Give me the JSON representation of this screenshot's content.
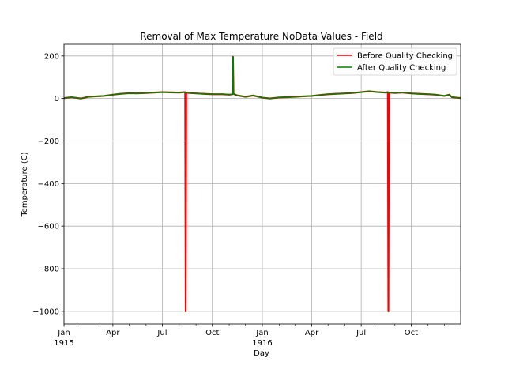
{
  "chart_data": {
    "type": "line",
    "title": "Removal of Max Temperature NoData Values - Field",
    "xlabel": "Day",
    "ylabel": "Temperature (C)",
    "ylim": [
      -1060,
      255
    ],
    "xlim": [
      "1915-01-01",
      "1916-12-31"
    ],
    "grid": true,
    "legend_position": "top-right",
    "y_ticks": [
      {
        "value": 200,
        "label": "200"
      },
      {
        "value": 0,
        "label": "0"
      },
      {
        "value": -200,
        "label": "−200"
      },
      {
        "value": -400,
        "label": "−400"
      },
      {
        "value": -600,
        "label": "−600"
      },
      {
        "value": -800,
        "label": "−800"
      },
      {
        "value": -1000,
        "label": "−1000"
      }
    ],
    "x_ticks": [
      {
        "date": "1915-01-01",
        "label": "Jan",
        "sublabel": "1915"
      },
      {
        "date": "1915-04-01",
        "label": "Apr",
        "sublabel": ""
      },
      {
        "date": "1915-07-01",
        "label": "Jul",
        "sublabel": ""
      },
      {
        "date": "1915-10-01",
        "label": "Oct",
        "sublabel": ""
      },
      {
        "date": "1916-01-01",
        "label": "Jan",
        "sublabel": "1916"
      },
      {
        "date": "1916-04-01",
        "label": "Apr",
        "sublabel": ""
      },
      {
        "date": "1916-07-01",
        "label": "Jul",
        "sublabel": ""
      },
      {
        "date": "1916-10-01",
        "label": "Oct",
        "sublabel": ""
      }
    ],
    "series": [
      {
        "name": "Before Quality Checking",
        "color": "#ff0000",
        "points": [
          [
            "1915-01-01",
            2
          ],
          [
            "1915-01-15",
            6
          ],
          [
            "1915-02-01",
            0
          ],
          [
            "1915-02-15",
            8
          ],
          [
            "1915-03-01",
            10
          ],
          [
            "1915-03-15",
            12
          ],
          [
            "1915-04-01",
            18
          ],
          [
            "1915-04-15",
            22
          ],
          [
            "1915-05-01",
            25
          ],
          [
            "1915-05-15",
            24
          ],
          [
            "1915-06-01",
            26
          ],
          [
            "1915-06-15",
            28
          ],
          [
            "1915-07-01",
            30
          ],
          [
            "1915-07-15",
            29
          ],
          [
            "1915-08-01",
            28
          ],
          [
            "1915-08-12",
            30
          ],
          [
            "1915-08-13",
            -1000
          ],
          [
            "1915-08-14",
            28
          ],
          [
            "1915-08-20",
            26
          ],
          [
            "1915-09-01",
            24
          ],
          [
            "1915-09-15",
            22
          ],
          [
            "1915-10-01",
            20
          ],
          [
            "1915-10-20",
            20
          ],
          [
            "1915-11-01",
            18
          ],
          [
            "1915-11-07",
            20
          ],
          [
            "1915-11-08",
            196
          ],
          [
            "1915-11-09",
            22
          ],
          [
            "1915-11-15",
            15
          ],
          [
            "1915-12-01",
            8
          ],
          [
            "1915-12-15",
            14
          ],
          [
            "1916-01-01",
            4
          ],
          [
            "1916-01-15",
            0
          ],
          [
            "1916-02-01",
            5
          ],
          [
            "1916-02-15",
            6
          ],
          [
            "1916-03-01",
            8
          ],
          [
            "1916-03-15",
            10
          ],
          [
            "1916-04-01",
            12
          ],
          [
            "1916-04-15",
            16
          ],
          [
            "1916-05-01",
            20
          ],
          [
            "1916-05-15",
            22
          ],
          [
            "1916-06-01",
            24
          ],
          [
            "1916-06-15",
            26
          ],
          [
            "1916-07-01",
            30
          ],
          [
            "1916-07-15",
            34
          ],
          [
            "1916-08-01",
            30
          ],
          [
            "1916-08-15",
            28
          ],
          [
            "1916-08-19",
            30
          ],
          [
            "1916-08-20",
            -1000
          ],
          [
            "1916-08-21",
            28
          ],
          [
            "1916-09-01",
            26
          ],
          [
            "1916-09-15",
            28
          ],
          [
            "1916-10-01",
            24
          ],
          [
            "1916-10-15",
            22
          ],
          [
            "1916-11-01",
            20
          ],
          [
            "1916-11-15",
            18
          ],
          [
            "1916-12-01",
            12
          ],
          [
            "1916-12-10",
            18
          ],
          [
            "1916-12-15",
            6
          ],
          [
            "1916-12-31",
            2
          ]
        ]
      },
      {
        "name": "After Quality Checking",
        "color": "#008000",
        "points": [
          [
            "1915-01-01",
            2
          ],
          [
            "1915-01-15",
            6
          ],
          [
            "1915-02-01",
            0
          ],
          [
            "1915-02-15",
            8
          ],
          [
            "1915-03-01",
            10
          ],
          [
            "1915-03-15",
            12
          ],
          [
            "1915-04-01",
            18
          ],
          [
            "1915-04-15",
            22
          ],
          [
            "1915-05-01",
            25
          ],
          [
            "1915-05-15",
            24
          ],
          [
            "1915-06-01",
            26
          ],
          [
            "1915-06-15",
            28
          ],
          [
            "1915-07-01",
            30
          ],
          [
            "1915-07-15",
            29
          ],
          [
            "1915-08-01",
            28
          ],
          [
            "1915-08-12",
            30
          ],
          [
            "1915-08-14",
            28
          ],
          [
            "1915-08-20",
            26
          ],
          [
            "1915-09-01",
            24
          ],
          [
            "1915-09-15",
            22
          ],
          [
            "1915-10-01",
            20
          ],
          [
            "1915-10-20",
            20
          ],
          [
            "1915-11-01",
            18
          ],
          [
            "1915-11-07",
            20
          ],
          [
            "1915-11-08",
            196
          ],
          [
            "1915-11-09",
            22
          ],
          [
            "1915-11-15",
            15
          ],
          [
            "1915-12-01",
            8
          ],
          [
            "1915-12-15",
            14
          ],
          [
            "1916-01-01",
            4
          ],
          [
            "1916-01-15",
            0
          ],
          [
            "1916-02-01",
            5
          ],
          [
            "1916-02-15",
            6
          ],
          [
            "1916-03-01",
            8
          ],
          [
            "1916-03-15",
            10
          ],
          [
            "1916-04-01",
            12
          ],
          [
            "1916-04-15",
            16
          ],
          [
            "1916-05-01",
            20
          ],
          [
            "1916-05-15",
            22
          ],
          [
            "1916-06-01",
            24
          ],
          [
            "1916-06-15",
            26
          ],
          [
            "1916-07-01",
            30
          ],
          [
            "1916-07-15",
            34
          ],
          [
            "1916-08-01",
            30
          ],
          [
            "1916-08-15",
            28
          ],
          [
            "1916-08-19",
            30
          ],
          [
            "1916-08-21",
            28
          ],
          [
            "1916-09-01",
            26
          ],
          [
            "1916-09-15",
            28
          ],
          [
            "1916-10-01",
            24
          ],
          [
            "1916-10-15",
            22
          ],
          [
            "1916-11-01",
            20
          ],
          [
            "1916-11-15",
            18
          ],
          [
            "1916-12-01",
            12
          ],
          [
            "1916-12-10",
            18
          ],
          [
            "1916-12-15",
            6
          ],
          [
            "1916-12-31",
            2
          ]
        ]
      }
    ]
  }
}
